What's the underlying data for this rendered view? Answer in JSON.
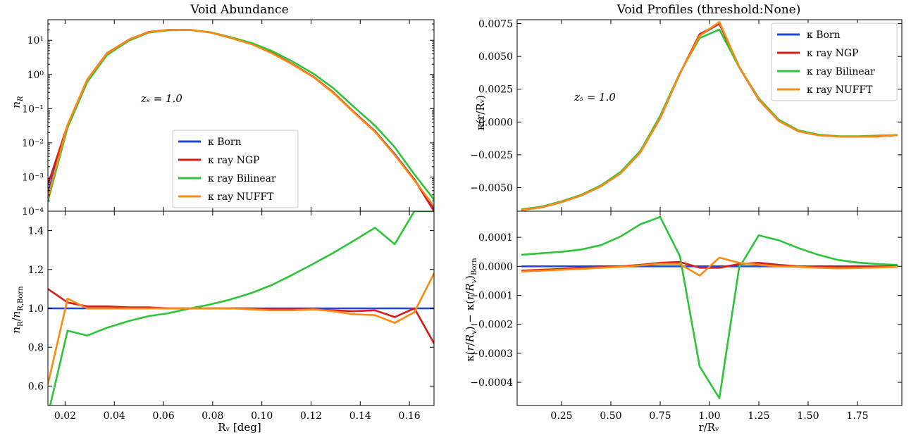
{
  "colors": {
    "born": "#1f46e0",
    "ngp": "#d81b1b",
    "bilinear": "#2ec43a",
    "nufft": "#ff8a12"
  },
  "chart_data": [
    {
      "type": "line",
      "id": "abundance",
      "title": "Void Abundance",
      "xlabel": "",
      "ylabel": "n_R",
      "yscale": "log",
      "xlim": [
        0.013,
        0.17
      ],
      "ylim": [
        0.0001,
        40
      ],
      "xticks": [],
      "yticks": [
        0.0001,
        0.001,
        0.01,
        0.1,
        1,
        10
      ],
      "ytick_labels": [
        "10⁻⁴",
        "10⁻³",
        "10⁻²",
        "10⁻¹",
        "10⁰",
        "10¹"
      ],
      "annotation": "zₛ = 1.0",
      "legend": "lower-center",
      "x": [
        0.013,
        0.021,
        0.029,
        0.037,
        0.046,
        0.054,
        0.062,
        0.071,
        0.079,
        0.087,
        0.096,
        0.104,
        0.112,
        0.121,
        0.129,
        0.137,
        0.146,
        0.154,
        0.162,
        0.17
      ],
      "series": [
        {
          "name": "κ Born",
          "key": "born",
          "values": [
            0.00035,
            0.032,
            0.7,
            4.1,
            10.5,
            17.5,
            20,
            20,
            17,
            12,
            7.7,
            4.3,
            2.1,
            0.85,
            0.3,
            0.085,
            0.022,
            0.0047,
            0.00085,
            0.00012
          ]
        },
        {
          "name": "κ ray NGP",
          "key": "ngp",
          "values": [
            0.0006,
            0.033,
            0.7,
            4.2,
            10.5,
            17.5,
            20,
            20,
            17,
            12,
            7.7,
            4.3,
            2.1,
            0.85,
            0.3,
            0.085,
            0.022,
            0.0045,
            0.00085,
            0.0001
          ]
        },
        {
          "name": "κ ray Bilinear",
          "key": "bilinear",
          "values": [
            0.0002,
            0.028,
            0.6,
            3.7,
            9.8,
            16.8,
            19.5,
            20,
            17.2,
            12.5,
            8.3,
            4.9,
            2.5,
            1.05,
            0.4,
            0.12,
            0.032,
            0.0075,
            0.0012,
            0.00022
          ]
        },
        {
          "name": "κ ray NUFFT",
          "key": "nufft",
          "values": [
            0.00025,
            0.034,
            0.7,
            4.1,
            10.4,
            17.4,
            20,
            20,
            17,
            12,
            7.6,
            4.2,
            2.05,
            0.83,
            0.29,
            0.082,
            0.021,
            0.0044,
            0.0008,
            0.00014
          ]
        }
      ]
    },
    {
      "type": "line",
      "id": "abundance_ratio",
      "title": "",
      "xlabel": "Rᵥ [deg]",
      "ylabel": "n_R / n_R,Born",
      "xlim": [
        0.013,
        0.17
      ],
      "ylim": [
        0.5,
        1.5
      ],
      "xticks": [
        0.02,
        0.04,
        0.06,
        0.08,
        0.1,
        0.12,
        0.14,
        0.16
      ],
      "xtick_labels": [
        "0.02",
        "0.04",
        "0.06",
        "0.08",
        "0.10",
        "0.12",
        "0.14",
        "0.16"
      ],
      "yticks": [
        0.6,
        0.8,
        1.0,
        1.2,
        1.4
      ],
      "ytick_labels": [
        "0.6",
        "0.8",
        "1.0",
        "1.2",
        "1.4"
      ],
      "x": [
        0.013,
        0.021,
        0.029,
        0.037,
        0.046,
        0.054,
        0.062,
        0.071,
        0.079,
        0.087,
        0.096,
        0.104,
        0.112,
        0.121,
        0.129,
        0.137,
        0.146,
        0.154,
        0.162,
        0.17
      ],
      "series": [
        {
          "name": "κ Born",
          "key": "born",
          "values": [
            1,
            1,
            1,
            1,
            1,
            1,
            1,
            1,
            1,
            1,
            1,
            1,
            1,
            1,
            1,
            1,
            1,
            1,
            1,
            1
          ]
        },
        {
          "name": "κ ray NGP",
          "key": "ngp",
          "values": [
            1.1,
            1.03,
            1.01,
            1.01,
            1.005,
            1.005,
            1.0,
            1.0,
            1.0,
            1.0,
            1.0,
            0.995,
            0.995,
            0.995,
            0.99,
            0.985,
            0.99,
            0.955,
            1.0,
            0.82
          ]
        },
        {
          "name": "κ ray Bilinear",
          "key": "bilinear",
          "values": [
            0.45,
            0.885,
            0.86,
            0.9,
            0.935,
            0.96,
            0.975,
            1.0,
            1.02,
            1.045,
            1.08,
            1.12,
            1.17,
            1.23,
            1.285,
            1.345,
            1.415,
            1.33,
            1.5,
            1.5
          ]
        },
        {
          "name": "κ ray NUFFT",
          "key": "nufft",
          "values": [
            0.61,
            1.05,
            1.0,
            1.0,
            1.0,
            1.0,
            1.0,
            1.0,
            1.0,
            1.0,
            0.995,
            0.99,
            0.99,
            0.995,
            0.985,
            0.97,
            0.965,
            0.925,
            0.98,
            1.18
          ]
        }
      ]
    },
    {
      "type": "line",
      "id": "profiles",
      "title": "Void Profiles (threshold:None)",
      "xlabel": "",
      "ylabel": "κ(r/Rᵥ)",
      "xlim": [
        0.025,
        1.975
      ],
      "ylim": [
        -0.0068,
        0.0078
      ],
      "xticks": [],
      "yticks": [
        -0.005,
        -0.0025,
        0.0,
        0.0025,
        0.005,
        0.0075
      ],
      "ytick_labels": [
        "−0.0050",
        "−0.0025",
        "0.0000",
        "0.0025",
        "0.0050",
        "0.0075"
      ],
      "annotation": "zₛ = 1.0",
      "legend": "upper-right",
      "x": [
        0.05,
        0.15,
        0.25,
        0.35,
        0.45,
        0.55,
        0.65,
        0.75,
        0.85,
        0.95,
        1.05,
        1.15,
        1.25,
        1.35,
        1.45,
        1.55,
        1.65,
        1.75,
        1.85,
        1.95
      ],
      "series": [
        {
          "name": "κ Born",
          "key": "born",
          "values": [
            -0.0067,
            -0.0065,
            -0.0061,
            -0.0056,
            -0.0049,
            -0.0039,
            -0.0023,
            0.0003,
            0.0037,
            0.0066,
            0.0075,
            0.0042,
            0.0017,
            0.0001,
            -0.0007,
            -0.001,
            -0.0011,
            -0.0011,
            -0.0011,
            -0.001
          ]
        },
        {
          "name": "κ ray NGP",
          "key": "ngp",
          "values": [
            -0.0067,
            -0.0065,
            -0.0061,
            -0.0056,
            -0.0049,
            -0.0039,
            -0.0023,
            0.0003,
            0.0037,
            0.0067,
            0.0075,
            0.0042,
            0.0017,
            0.0001,
            -0.0007,
            -0.001,
            -0.0011,
            -0.0011,
            -0.0011,
            -0.001
          ]
        },
        {
          "name": "κ ray Bilinear",
          "key": "bilinear",
          "values": [
            -0.00665,
            -0.00645,
            -0.00605,
            -0.00555,
            -0.00483,
            -0.0038,
            -0.0022,
            0.00047,
            0.00375,
            0.0064,
            0.00705,
            0.0042,
            0.00181,
            0.00019,
            -0.00063,
            -0.00096,
            -0.00108,
            -0.00109,
            -0.00104,
            -0.001
          ]
        },
        {
          "name": "κ ray NUFFT",
          "key": "nufft",
          "values": [
            -0.0067,
            -0.0065,
            -0.0061,
            -0.0056,
            -0.0049,
            -0.0039,
            -0.0023,
            0.0003,
            0.0037,
            0.00657,
            0.00763,
            0.00423,
            0.00172,
            0.0001,
            -0.0007,
            -0.00101,
            -0.00111,
            -0.00111,
            -0.00109,
            -0.001
          ]
        }
      ]
    },
    {
      "type": "line",
      "id": "profile_difference",
      "title": "",
      "xlabel": "r/Rᵥ",
      "ylabel": "κ(r/Rᵥ) − κ(r/Rᵥ)Born",
      "xlim": [
        0.025,
        1.975
      ],
      "ylim": [
        -0.00048,
        0.00019
      ],
      "xticks": [
        0.25,
        0.5,
        0.75,
        1.0,
        1.25,
        1.5,
        1.75
      ],
      "xtick_labels": [
        "0.25",
        "0.50",
        "0.75",
        "1.00",
        "1.25",
        "1.50",
        "1.75"
      ],
      "yticks": [
        -0.0004,
        -0.0003,
        -0.0002,
        -0.0001,
        0.0,
        0.0001
      ],
      "ytick_labels": [
        "−0.0004",
        "−0.0003",
        "−0.0002",
        "−0.0001",
        "0.0000",
        "0.0001"
      ],
      "x": [
        0.05,
        0.15,
        0.25,
        0.35,
        0.45,
        0.55,
        0.65,
        0.75,
        0.85,
        0.95,
        1.05,
        1.15,
        1.25,
        1.35,
        1.45,
        1.55,
        1.65,
        1.75,
        1.85,
        1.95
      ],
      "series": [
        {
          "name": "κ Born",
          "key": "born",
          "values": [
            0,
            0,
            0,
            0,
            0,
            0,
            0,
            0,
            0,
            0,
            0,
            0,
            0,
            0,
            0,
            0,
            0,
            0,
            0,
            0
          ]
        },
        {
          "name": "κ ray NGP",
          "key": "ngp",
          "values": [
            -1.5e-05,
            -1.2e-05,
            -9e-06,
            -6e-06,
            -3e-06,
            0.0,
            5e-06,
            1.2e-05,
            1.5e-05,
            -5e-06,
            -5e-06,
            8e-06,
            1.2e-05,
            5e-06,
            0.0,
            -2e-06,
            -3e-06,
            -2e-06,
            -1e-06,
            1e-06
          ]
        },
        {
          "name": "κ ray Bilinear",
          "key": "bilinear",
          "values": [
            4e-05,
            4.5e-05,
            5e-05,
            5.8e-05,
            7.3e-05,
            0.000103,
            0.000145,
            0.00017,
            3.5e-05,
            -0.000345,
            -0.000455,
            -5e-06,
            0.000107,
            9e-05,
            6.3e-05,
            4e-05,
            2.2e-05,
            1.3e-05,
            8e-06,
            5e-06
          ]
        },
        {
          "name": "κ ray NUFFT",
          "key": "nufft",
          "values": [
            -1.8e-05,
            -1.5e-05,
            -1.2e-05,
            -9e-06,
            -5e-06,
            -2e-06,
            3e-06,
            9e-06,
            8e-06,
            -3.2e-05,
            3e-05,
            1.2e-05,
            5e-06,
            0.0,
            -2e-06,
            -5e-06,
            -7e-06,
            -6e-06,
            -4e-06,
            -2e-06
          ]
        }
      ]
    }
  ]
}
